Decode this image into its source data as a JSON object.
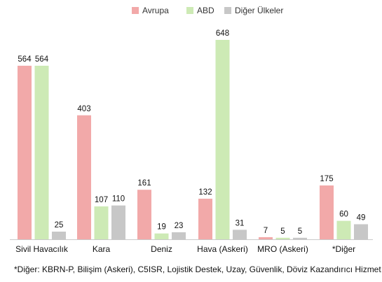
{
  "chart_data": {
    "type": "bar",
    "categories": [
      "Sivil Havacılık",
      "Kara",
      "Deniz",
      "Hava (Askeri)",
      "MRO (Askeri)",
      "*Diğer"
    ],
    "series": [
      {
        "name": "Avrupa",
        "values": [
          564,
          403,
          161,
          132,
          7,
          175
        ],
        "color": "#f2a9a9"
      },
      {
        "name": "ABD",
        "values": [
          564,
          107,
          19,
          648,
          5,
          60
        ],
        "color": "#cdeab5"
      },
      {
        "name": "Diğer Ülkeler",
        "values": [
          25,
          110,
          23,
          31,
          5,
          49
        ],
        "color": "#c7c7c7"
      }
    ],
    "ylim": [
      0,
      648
    ],
    "legend_position": "top-right",
    "grid": false,
    "footnote": "*Diğer: KBRN-P, Bilişim (Askeri), C5ISR, Lojistik Destek, Uzay, Güvenlik, Döviz Kazandırıcı Hizmet"
  }
}
